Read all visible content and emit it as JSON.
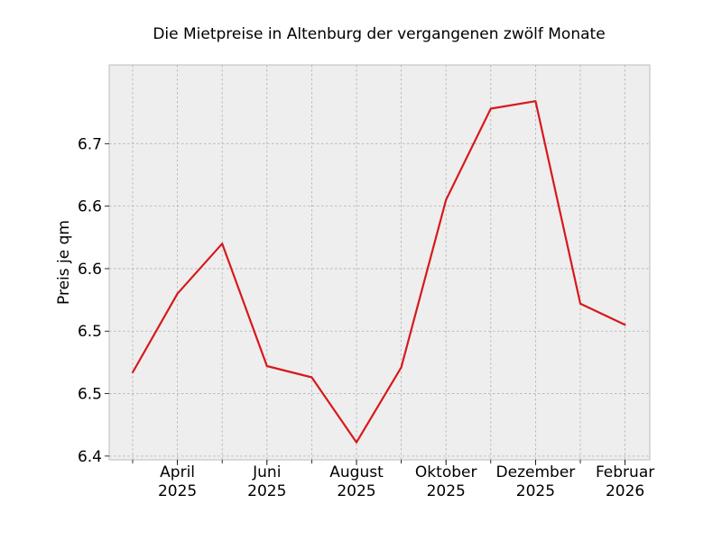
{
  "chart_data": {
    "type": "line",
    "title": "Die Mietpreise in Altenburg der vergangenen zwölf Monate",
    "xlabel": "",
    "ylabel": "Preis je qm",
    "x": [
      "2025-03",
      "2025-04",
      "2025-05",
      "2025-06",
      "2025-07",
      "2025-08",
      "2025-09",
      "2025-10",
      "2025-11",
      "2025-12",
      "2026-01",
      "2026-02"
    ],
    "series": [
      {
        "name": "",
        "color": "#d7191c",
        "values": [
          6.467,
          6.53,
          6.57,
          6.472,
          6.463,
          6.411,
          6.471,
          6.605,
          6.678,
          6.684,
          6.522,
          6.505
        ]
      }
    ],
    "ylim": [
      6.397,
      6.713
    ],
    "yticks": [
      {
        "value": 6.4,
        "label": "6.4"
      },
      {
        "value": 6.45,
        "label": "6.5"
      },
      {
        "value": 6.5,
        "label": "6.5"
      },
      {
        "value": 6.55,
        "label": "6.6"
      },
      {
        "value": 6.6,
        "label": "6.6"
      },
      {
        "value": 6.65,
        "label": "6.7"
      }
    ],
    "xticks": [
      {
        "index": 1,
        "line1": "April",
        "line2": "2025"
      },
      {
        "index": 3,
        "line1": "Juni",
        "line2": "2025"
      },
      {
        "index": 5,
        "line1": "August",
        "line2": "2025"
      },
      {
        "index": 7,
        "line1": "Oktober",
        "line2": "2025"
      },
      {
        "index": 9,
        "line1": "Dezember",
        "line2": "2025"
      },
      {
        "index": 11,
        "line1": "Februar",
        "line2": "2026"
      }
    ],
    "grid": true,
    "legend": "none"
  }
}
